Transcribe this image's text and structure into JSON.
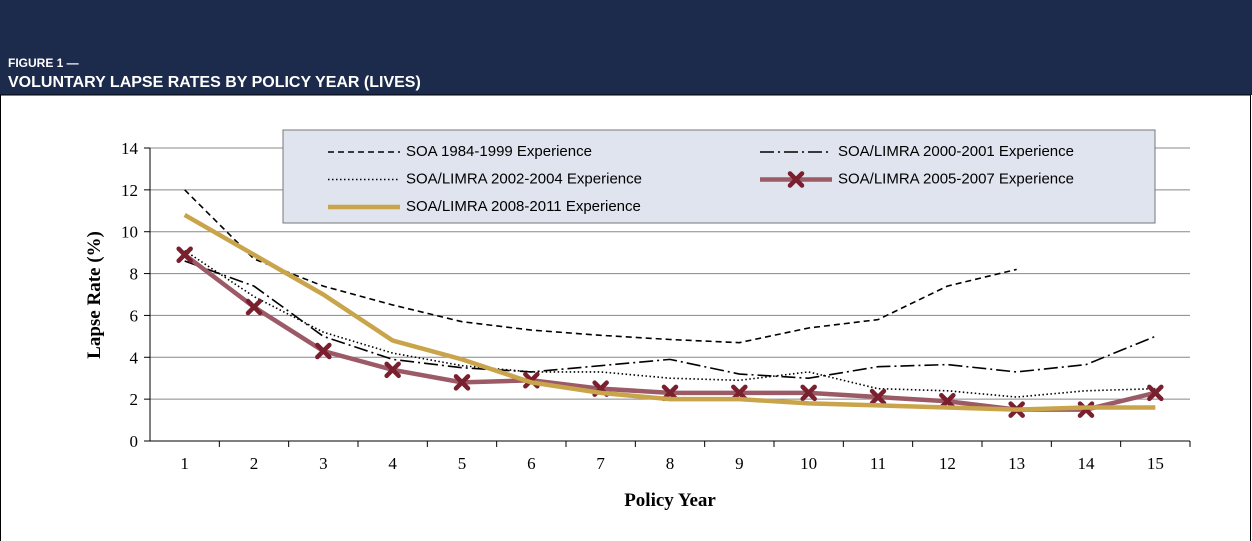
{
  "header": {
    "label": "FIGURE 1 —",
    "title": "VOLUNTARY LAPSE RATES BY POLICY YEAR (LIVES)"
  },
  "chart_data": {
    "type": "line",
    "x_label": "Policy Year",
    "y_label": "Lapse Rate (%)",
    "categories": [
      "1",
      "2",
      "3",
      "4",
      "5",
      "6",
      "7",
      "8",
      "9",
      "10",
      "11",
      "12",
      "13",
      "14",
      "15"
    ],
    "ylim": [
      0,
      14
    ],
    "yticks": [
      0,
      2,
      4,
      6,
      8,
      10,
      12,
      14
    ],
    "grid": true,
    "legend": "top",
    "series": [
      {
        "name": "SOA 1984-1999 Experience",
        "color": "#000000",
        "style": "dashed",
        "values": [
          12.0,
          8.7,
          7.4,
          6.5,
          5.7,
          5.3,
          5.05,
          4.85,
          4.7,
          5.4,
          5.8,
          7.4,
          8.2,
          null,
          null
        ]
      },
      {
        "name": "SOA/LIMRA 2000-2001 Experience",
        "color": "#000000",
        "style": "dashdot",
        "values": [
          8.6,
          7.4,
          5.0,
          3.9,
          3.5,
          3.3,
          3.6,
          3.9,
          3.2,
          3.0,
          3.55,
          3.65,
          3.3,
          3.65,
          5.0
        ]
      },
      {
        "name": "SOA/LIMRA 2002-2004 Experience",
        "color": "#000000",
        "style": "dotted",
        "values": [
          9.1,
          6.9,
          5.2,
          4.2,
          3.6,
          3.3,
          3.3,
          3.0,
          2.9,
          3.3,
          2.5,
          2.4,
          2.1,
          2.4,
          2.5
        ]
      },
      {
        "name": "SOA/LIMRA 2005-2007 Experience",
        "color": "#9b5a66",
        "style": "solid",
        "marker": "x",
        "marker_color": "#7a1f2e",
        "values": [
          8.9,
          6.4,
          4.3,
          3.4,
          2.8,
          2.9,
          2.5,
          2.3,
          2.3,
          2.3,
          2.1,
          1.9,
          1.5,
          1.5,
          2.3
        ]
      },
      {
        "name": "SOA/LIMRA 2008-2011 Experience",
        "color": "#c9a44a",
        "style": "solid",
        "values": [
          10.8,
          8.9,
          7.0,
          4.8,
          3.9,
          2.8,
          2.3,
          2.0,
          2.0,
          1.8,
          1.7,
          1.6,
          1.5,
          1.6,
          1.6
        ]
      }
    ]
  }
}
